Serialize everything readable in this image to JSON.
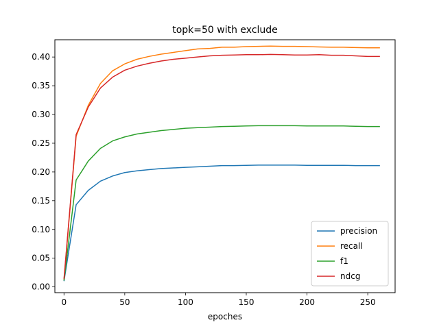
{
  "chart_data": {
    "type": "line",
    "title": "topk=50 with exclude",
    "xlabel": "epoches",
    "ylabel": "",
    "xlim": [
      -7.5,
      272.5
    ],
    "ylim": [
      -0.01,
      0.43
    ],
    "xticks": [
      "0",
      "50",
      "100",
      "150",
      "200",
      "250"
    ],
    "yticks": [
      "0.00",
      "0.05",
      "0.10",
      "0.15",
      "0.20",
      "0.25",
      "0.30",
      "0.35",
      "0.40"
    ],
    "grid": false,
    "legend_position": "lower-right",
    "x": [
      0,
      10,
      20,
      30,
      40,
      50,
      60,
      70,
      80,
      90,
      100,
      110,
      120,
      130,
      140,
      150,
      160,
      170,
      180,
      190,
      200,
      210,
      220,
      230,
      240,
      250,
      260
    ],
    "series": [
      {
        "name": "precision",
        "color": "#1f77b4",
        "values": [
          0.01,
          0.143,
          0.168,
          0.184,
          0.193,
          0.199,
          0.202,
          0.204,
          0.206,
          0.207,
          0.208,
          0.209,
          0.21,
          0.211,
          0.211,
          0.2115,
          0.212,
          0.212,
          0.212,
          0.212,
          0.2115,
          0.2115,
          0.2115,
          0.2115,
          0.211,
          0.211,
          0.211
        ]
      },
      {
        "name": "recall",
        "color": "#ff7f0e",
        "values": [
          0.012,
          0.262,
          0.316,
          0.354,
          0.376,
          0.388,
          0.396,
          0.401,
          0.405,
          0.408,
          0.411,
          0.414,
          0.415,
          0.417,
          0.417,
          0.418,
          0.4185,
          0.419,
          0.4185,
          0.4185,
          0.418,
          0.4175,
          0.417,
          0.417,
          0.4165,
          0.416,
          0.416
        ]
      },
      {
        "name": "f1",
        "color": "#2ca02c",
        "values": [
          0.011,
          0.186,
          0.219,
          0.241,
          0.254,
          0.261,
          0.266,
          0.269,
          0.272,
          0.274,
          0.276,
          0.277,
          0.278,
          0.279,
          0.2795,
          0.28,
          0.2805,
          0.2805,
          0.2805,
          0.2805,
          0.28,
          0.28,
          0.28,
          0.28,
          0.2795,
          0.279,
          0.279
        ]
      },
      {
        "name": "ndcg",
        "color": "#d62728",
        "values": [
          0.014,
          0.265,
          0.313,
          0.346,
          0.365,
          0.377,
          0.384,
          0.389,
          0.393,
          0.396,
          0.398,
          0.4,
          0.402,
          0.403,
          0.4035,
          0.404,
          0.404,
          0.4045,
          0.404,
          0.4035,
          0.4035,
          0.404,
          0.403,
          0.403,
          0.402,
          0.401,
          0.401
        ]
      }
    ]
  }
}
